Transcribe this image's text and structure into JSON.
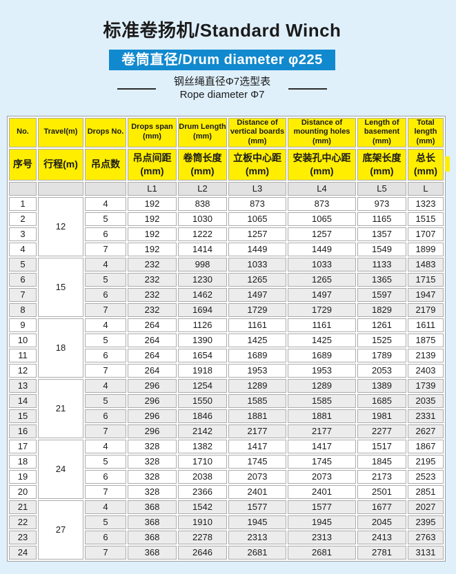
{
  "header": {
    "title": "标准卷扬机/Standard Winch",
    "banner": "卷筒直径/Drum diameter φ225",
    "subtitle_cn": "钢丝绳直径Φ7选型表",
    "subtitle_en": "Rope diameter Φ7"
  },
  "colors": {
    "page_background": "#DFF0FB",
    "banner_blue": "#1189CE",
    "header_yellow": "#FFEE00",
    "code_row_gray": "#E2E2E2",
    "shade_gray": "#ECECEC"
  },
  "table": {
    "columns": [
      {
        "en": "No.",
        "cn": "序号",
        "code": ""
      },
      {
        "en": "Travel(m)",
        "cn": "行程(m)",
        "code": ""
      },
      {
        "en": "Drops No.",
        "cn": "吊点数",
        "code": ""
      },
      {
        "en": "Drops span\n(mm)",
        "cn": "吊点间距\n(mm)",
        "code": "L1"
      },
      {
        "en": "Drum Length\n(mm)",
        "cn": "卷筒长度\n(mm)",
        "code": "L2"
      },
      {
        "en": "Distance of\nvertical boards\n(mm)",
        "cn": "立板中心距\n(mm)",
        "code": "L3"
      },
      {
        "en": "Distance of\nmounting holes\n(mm)",
        "cn": "安装孔中心距\n(mm)",
        "code": "L4"
      },
      {
        "en": "Length of\nbasement\n(mm)",
        "cn": "底架长度\n(mm)",
        "code": "L5"
      },
      {
        "en": "Total\nlength\n(mm)",
        "cn": "总长\n(mm)",
        "code": "L"
      }
    ],
    "groups": [
      {
        "travel": "12",
        "rows": [
          [
            "1",
            "4",
            "192",
            "838",
            "873",
            "873",
            "973",
            "1323"
          ],
          [
            "2",
            "5",
            "192",
            "1030",
            "1065",
            "1065",
            "1165",
            "1515"
          ],
          [
            "3",
            "6",
            "192",
            "1222",
            "1257",
            "1257",
            "1357",
            "1707"
          ],
          [
            "4",
            "7",
            "192",
            "1414",
            "1449",
            "1449",
            "1549",
            "1899"
          ]
        ]
      },
      {
        "travel": "15",
        "rows": [
          [
            "5",
            "4",
            "232",
            "998",
            "1033",
            "1033",
            "1133",
            "1483"
          ],
          [
            "6",
            "5",
            "232",
            "1230",
            "1265",
            "1265",
            "1365",
            "1715"
          ],
          [
            "7",
            "6",
            "232",
            "1462",
            "1497",
            "1497",
            "1597",
            "1947"
          ],
          [
            "8",
            "7",
            "232",
            "1694",
            "1729",
            "1729",
            "1829",
            "2179"
          ]
        ]
      },
      {
        "travel": "18",
        "rows": [
          [
            "9",
            "4",
            "264",
            "1126",
            "1161",
            "1161",
            "1261",
            "1611"
          ],
          [
            "10",
            "5",
            "264",
            "1390",
            "1425",
            "1425",
            "1525",
            "1875"
          ],
          [
            "11",
            "6",
            "264",
            "1654",
            "1689",
            "1689",
            "1789",
            "2139"
          ],
          [
            "12",
            "7",
            "264",
            "1918",
            "1953",
            "1953",
            "2053",
            "2403"
          ]
        ]
      },
      {
        "travel": "21",
        "rows": [
          [
            "13",
            "4",
            "296",
            "1254",
            "1289",
            "1289",
            "1389",
            "1739"
          ],
          [
            "14",
            "5",
            "296",
            "1550",
            "1585",
            "1585",
            "1685",
            "2035"
          ],
          [
            "15",
            "6",
            "296",
            "1846",
            "1881",
            "1881",
            "1981",
            "2331"
          ],
          [
            "16",
            "7",
            "296",
            "2142",
            "2177",
            "2177",
            "2277",
            "2627"
          ]
        ]
      },
      {
        "travel": "24",
        "rows": [
          [
            "17",
            "4",
            "328",
            "1382",
            "1417",
            "1417",
            "1517",
            "1867"
          ],
          [
            "18",
            "5",
            "328",
            "1710",
            "1745",
            "1745",
            "1845",
            "2195"
          ],
          [
            "19",
            "6",
            "328",
            "2038",
            "2073",
            "2073",
            "2173",
            "2523"
          ],
          [
            "20",
            "7",
            "328",
            "2366",
            "2401",
            "2401",
            "2501",
            "2851"
          ]
        ]
      },
      {
        "travel": "27",
        "rows": [
          [
            "21",
            "4",
            "368",
            "1542",
            "1577",
            "1577",
            "1677",
            "2027"
          ],
          [
            "22",
            "5",
            "368",
            "1910",
            "1945",
            "1945",
            "2045",
            "2395"
          ],
          [
            "23",
            "6",
            "368",
            "2278",
            "2313",
            "2313",
            "2413",
            "2763"
          ],
          [
            "24",
            "7",
            "368",
            "2646",
            "2681",
            "2681",
            "2781",
            "3131"
          ]
        ]
      }
    ]
  }
}
